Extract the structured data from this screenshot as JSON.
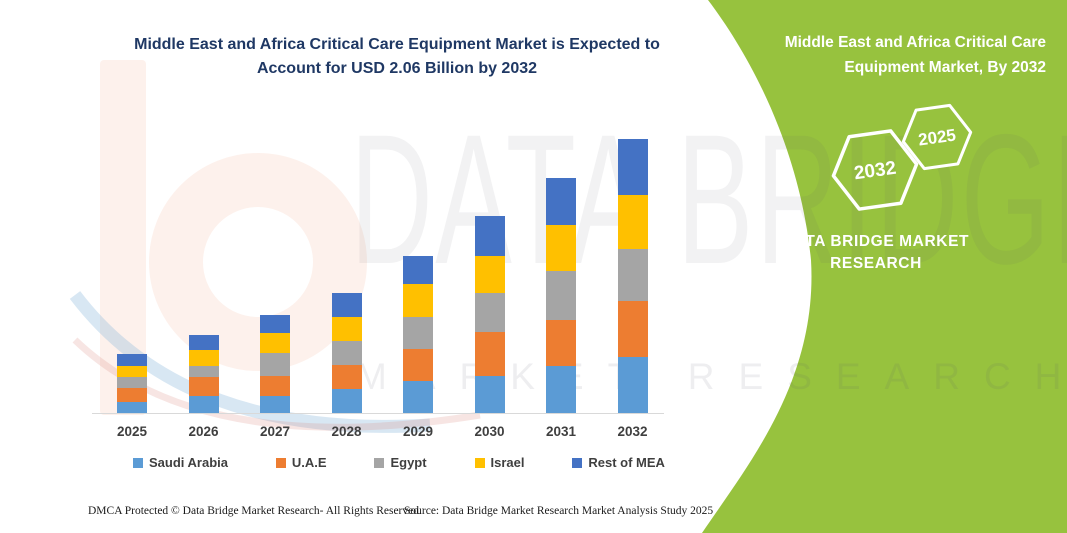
{
  "page": {
    "title_line1": "Middle East and Africa Critical Care Equipment Market is Expected to",
    "title_line2": "Account for USD 2.06 Billion by 2032",
    "title_color": "#1F3864"
  },
  "chart_data": {
    "type": "bar",
    "stacked": true,
    "title": "Middle East and Africa Critical Care Equipment Market is Expected to Account for USD 2.06 Billion by 2032",
    "unit": "USD Billion",
    "categories": [
      "2025",
      "2026",
      "2027",
      "2028",
      "2029",
      "2030",
      "2031",
      "2032"
    ],
    "series": [
      {
        "name": "Saudi Arabia",
        "color": "#5B9BD5",
        "values": [
          0.08,
          0.13,
          0.13,
          0.18,
          0.24,
          0.28,
          0.35,
          0.42
        ]
      },
      {
        "name": "U.A.E",
        "color": "#ED7D31",
        "values": [
          0.11,
          0.14,
          0.15,
          0.18,
          0.24,
          0.33,
          0.35,
          0.42
        ]
      },
      {
        "name": "Egypt",
        "color": "#A5A5A5",
        "values": [
          0.08,
          0.08,
          0.17,
          0.18,
          0.24,
          0.29,
          0.37,
          0.39
        ]
      },
      {
        "name": "Israel",
        "color": "#FFC000",
        "values": [
          0.08,
          0.12,
          0.15,
          0.18,
          0.25,
          0.28,
          0.34,
          0.41
        ]
      },
      {
        "name": "Rest of MEA",
        "color": "#4472C4",
        "values": [
          0.09,
          0.12,
          0.14,
          0.18,
          0.21,
          0.3,
          0.36,
          0.42
        ]
      }
    ],
    "totals": [
      0.44,
      0.59,
      0.74,
      0.9,
      1.18,
      1.48,
      1.77,
      2.06
    ],
    "highlight_total_2032": "USD 2.06 Billion",
    "ylim": [
      0,
      2.2
    ],
    "gridlines": false,
    "y_axis_shown": false,
    "legend_position": "bottom"
  },
  "side_panel": {
    "background_color": "#97C23E",
    "title_line1": "Middle East and Africa Critical Care",
    "title_line2": "Equipment Market, By 2032",
    "hexagon_back_label": "2032",
    "hexagon_front_label": "2025",
    "brand_line1": "DATA BRIDGE MARKET",
    "brand_line2": "RESEARCH"
  },
  "watermark": {
    "line1": "DATA BRIDGE",
    "line2": "MARKET RESEARCH"
  },
  "footer": {
    "dmca_text": "DMCA Protected © Data Bridge Market Research-  All Rights Reserved.",
    "source_text": "Source: Data Bridge Market Research  Market Analysis Study 2025"
  }
}
